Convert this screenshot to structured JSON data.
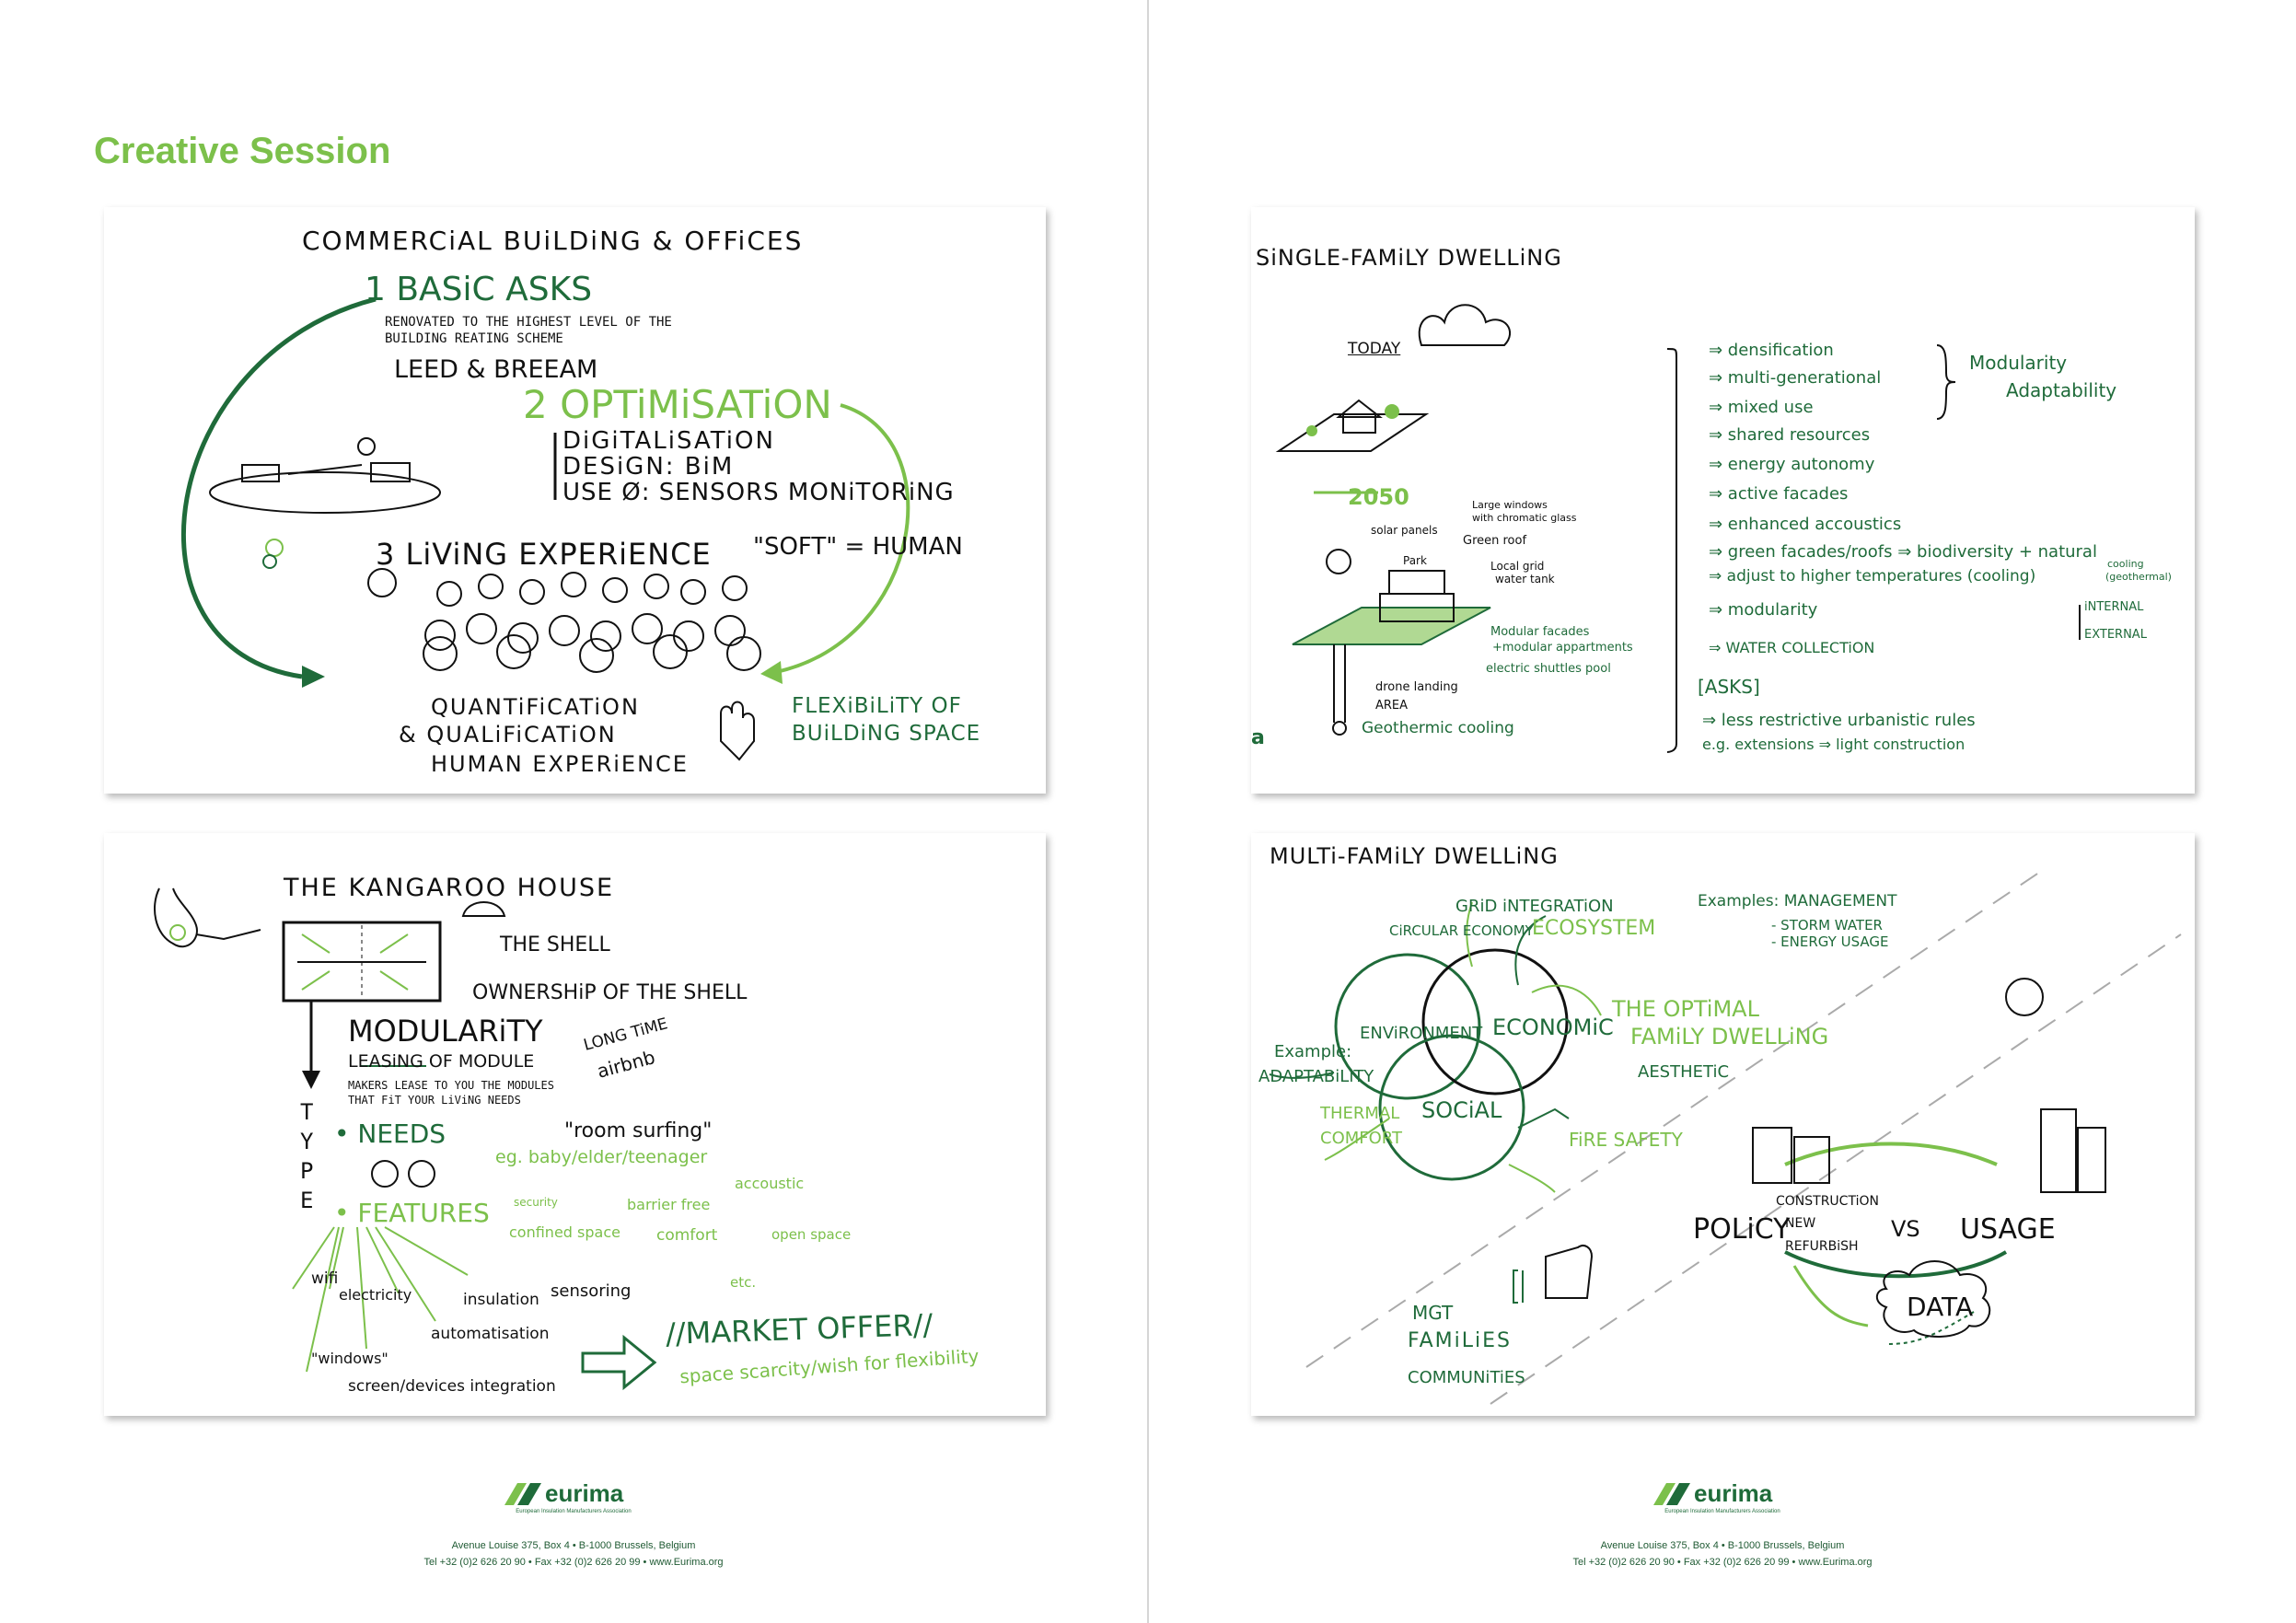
{
  "left_page": {
    "section_title": "Creative Session",
    "commercial": {
      "title": "COMMERCiAL BUiLDiNG & OFFiCES",
      "basic_asks": "1 BASiC ASKS",
      "basic_desc1": "RENOVATED TO THE HIGHEST LEVEL OF THE",
      "basic_desc2": "BUILDING REATING SCHEME",
      "leed": "LEED & BREEAM",
      "optimisation": "2 OPTiMiSATiON",
      "digitalisation": "DiGiTALiSATiON",
      "design": "DESiGN: BiM",
      "use": "USE Ø: SENSORS MONiTORiNG",
      "living": "3 LiViNG EXPERiENCE",
      "soft": "\"SOFT\" = HUMAN",
      "quant1": "QUANTiFiCATiON",
      "quant2": "& QUALiFiCATiON",
      "quant3": "HUMAN EXPERiENCE",
      "flex1": "FLEXiBiLiTY OF",
      "flex2": "BUiLDiNG SPACE"
    },
    "kangaroo": {
      "title": "THE KANGAROO HOUSE",
      "shell": "THE SHELL",
      "ownership": "OWNERSHiP OF THE SHELL",
      "modularity": "MODULARiTY",
      "leasing": "LEASiNG OF MODULE",
      "makers1": "MAKERS LEASE TO YOU THE MODULES",
      "makers2": "THAT FiT YOUR LiViNG NEEDS",
      "long_time": "LONG TiME",
      "airbnb": "airbnb",
      "room_surfing": "\"room surfing\"",
      "needs": "• NEEDS",
      "eg": "eg. baby/elder/teenager",
      "accoustic": "accoustic",
      "security": "security",
      "barrier": "barrier free",
      "confined": "confined space",
      "comfort": "comfort",
      "open_space": "open space",
      "etc": "etc.",
      "features": "• FEATURES",
      "wifi": "wifi",
      "electricity": "electricity",
      "insulation": "insulation",
      "sensoring": "sensoring",
      "automatisation": "automatisation",
      "windows": "\"windows\"",
      "screen": "screen/devices integration",
      "type_letters": [
        "T",
        "Y",
        "P",
        "E"
      ],
      "market": "//MARKET OFFER//",
      "space": "space scarcity/wish for flexibility"
    },
    "footer": {
      "logo": "eurima",
      "logo_sub": "European Insulation Manufacturers Association",
      "address": "Avenue Louise 375, Box 4 • B-1000 Brussels, Belgium",
      "contact": "Tel  +32 (0)2 626 20 90 • Fax +32 (0)2 626 20 99 • www.Eurima.org"
    }
  },
  "right_page": {
    "single_family": {
      "title": "SiNGLE-FAMiLY DWELLiNG",
      "today": "TODAY",
      "year": "2050",
      "solar": "solar panels",
      "park": "Park",
      "large_windows1": "Large windows",
      "large_windows2": "with chromatic glass",
      "green_roof": "Green roof",
      "local_grid1": "Local grid",
      "local_grid2": "water tank",
      "modular1": "Modular facades",
      "modular2": "+modular appartments",
      "electric": "electric shuttles pool",
      "drone1": "drone landing",
      "drone2": "AREA",
      "geothermic": "Geothermic cooling",
      "logo_frag": "a",
      "list": [
        "⇒ densification",
        "⇒ multi-generational",
        "⇒ mixed use",
        "⇒ shared resources",
        "⇒ energy autonomy",
        "⇒ active facades",
        "⇒ enhanced accoustics",
        "⇒ green facades/roofs ⇒ biodiversity + natural",
        "⇒ adjust to higher temperatures (cooling)",
        "⇒ modularity",
        "⇒ WATER COLLECTiON"
      ],
      "internal": "iNTERNAL",
      "external": "EXTERNAL",
      "cooling": "cooling",
      "geothermal": "(geothermal)",
      "modularity_adapt1": "Modularity",
      "modularity_adapt2": "Adaptability",
      "asks": "[ASKS]",
      "asks1": "⇒ less restrictive urbanistic rules",
      "asks2": "e.g. extensions ⇒ light construction"
    },
    "multi_family": {
      "title": "MULTi-FAMiLY DWELLiNG",
      "grid": "GRiD iNTEGRATiON",
      "circular": "CiRCULAR ECONOMY",
      "ecosystem": "ECOSYSTEM",
      "examples": "Examples: MANAGEMENT",
      "storm": "- STORM WATER",
      "energy_usage": "- ENERGY USAGE",
      "environment": "ENViRONMENT",
      "economic": "ECONOMiC",
      "social": "SOCiAL",
      "optimal1": "THE OPTiMAL",
      "optimal2": "FAMiLY DWELLiNG",
      "example": "Example:",
      "adaptability": "ADAPTABiLiTY",
      "aesthetic": "AESTHETiC",
      "thermal1": "THERMAL",
      "thermal2": "COMFORT",
      "fire": "FiRE SAFETY",
      "policy": "POLiCY",
      "construction": "CONSTRUCTiON",
      "new": "NEW",
      "refurbish": "REFURBiSH",
      "vs": "VS",
      "usage": "USAGE",
      "mgt": "MGT",
      "families": "FAMiLiES",
      "communities": "COMMUNiTiES",
      "data": "DATA"
    },
    "footer": {
      "logo": "eurima",
      "logo_sub": "European Insulation Manufacturers Association",
      "address": "Avenue Louise 375, Box 4 • B-1000 Brussels, Belgium",
      "contact": "Tel  +32 (0)2 626 20 90 • Fax +32 (0)2 626 20 99 • www.Eurima.org"
    }
  },
  "colors": {
    "dark_green": "#1f6b3a",
    "light_green": "#7cc04b",
    "ink": "#111111"
  }
}
